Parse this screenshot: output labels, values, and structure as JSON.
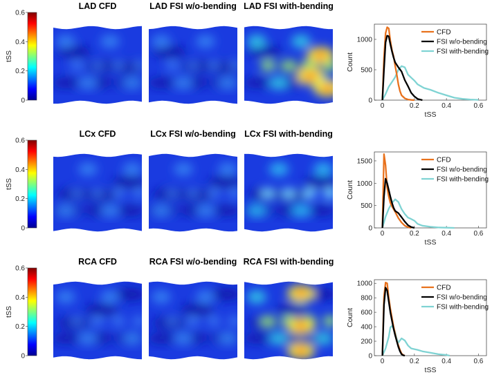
{
  "colorbar": {
    "label": "tSS",
    "ticks": [
      "0",
      "0.2",
      "0.4",
      "0.6"
    ],
    "colormap": "jet",
    "range": [
      0,
      0.6
    ]
  },
  "rows": [
    {
      "vessel": "LAD",
      "maps": [
        {
          "title": "LAD CFD",
          "level": "low"
        },
        {
          "title": "LAD FSI w/o-bending",
          "level": "low"
        },
        {
          "title": "LAD FSI with-bending",
          "level": "high"
        }
      ]
    },
    {
      "vessel": "LCx",
      "maps": [
        {
          "title": "LCx CFD",
          "level": "low"
        },
        {
          "title": "LCx FSI w/o-bending",
          "level": "low"
        },
        {
          "title": "LCx FSI with-bending",
          "level": "medium"
        }
      ]
    },
    {
      "vessel": "RCA",
      "maps": [
        {
          "title": "RCA CFD",
          "level": "low"
        },
        {
          "title": "RCA FSI w/o-bending",
          "level": "low"
        },
        {
          "title": "RCA FSI with-bending",
          "level": "high"
        }
      ]
    }
  ],
  "colors": {
    "CFD": "#e8711c",
    "FSI w/o-bending": "#000000",
    "FSI with-bending": "#7fd3d3"
  },
  "chart_data": [
    {
      "type": "line",
      "xlabel": "tSS",
      "ylabel": "Count",
      "xlim": [
        -0.05,
        0.65
      ],
      "ylim": [
        0,
        1250
      ],
      "xticks": [
        "0",
        "0.2",
        "0.4",
        "0.6"
      ],
      "yticks": [
        "0",
        "500",
        "1000"
      ],
      "legend": "top-right",
      "series": [
        {
          "name": "CFD",
          "x": [
            0,
            0.01,
            0.02,
            0.03,
            0.04,
            0.05,
            0.06,
            0.07,
            0.08,
            0.09,
            0.1,
            0.11,
            0.12,
            0.14,
            0.16,
            0.18,
            0.2
          ],
          "y": [
            0,
            700,
            1100,
            1200,
            1180,
            980,
            820,
            720,
            560,
            420,
            260,
            150,
            80,
            30,
            10,
            3,
            0
          ]
        },
        {
          "name": "FSI w/o-bending",
          "x": [
            0,
            0.01,
            0.02,
            0.03,
            0.04,
            0.05,
            0.06,
            0.07,
            0.08,
            0.1,
            0.12,
            0.14,
            0.16,
            0.18,
            0.2,
            0.22,
            0.25
          ],
          "y": [
            0,
            500,
            950,
            1060,
            1050,
            920,
            800,
            700,
            620,
            540,
            470,
            330,
            230,
            120,
            60,
            20,
            0
          ]
        },
        {
          "name": "FSI with-bending",
          "x": [
            0,
            0.02,
            0.04,
            0.06,
            0.08,
            0.1,
            0.12,
            0.14,
            0.16,
            0.18,
            0.2,
            0.22,
            0.26,
            0.3,
            0.35,
            0.4,
            0.45,
            0.5,
            0.55,
            0.6
          ],
          "y": [
            0,
            100,
            220,
            300,
            380,
            500,
            560,
            540,
            420,
            370,
            320,
            260,
            200,
            170,
            120,
            80,
            40,
            20,
            10,
            5
          ]
        }
      ]
    },
    {
      "type": "line",
      "xlabel": "tSS",
      "ylabel": "Count",
      "xlim": [
        -0.05,
        0.65
      ],
      "ylim": [
        0,
        1700
      ],
      "xticks": [
        "0",
        "0.2",
        "0.4",
        "0.6"
      ],
      "yticks": [
        "0",
        "500",
        "1000",
        "1500"
      ],
      "legend": "top-right",
      "series": [
        {
          "name": "CFD",
          "x": [
            0,
            0.005,
            0.01,
            0.02,
            0.03,
            0.04,
            0.05,
            0.06,
            0.07,
            0.08,
            0.1,
            0.12,
            0.14,
            0.16,
            0.18
          ],
          "y": [
            0,
            800,
            1650,
            1400,
            900,
            700,
            560,
            480,
            420,
            360,
            220,
            120,
            50,
            15,
            0
          ]
        },
        {
          "name": "FSI w/o-bending",
          "x": [
            0,
            0.01,
            0.02,
            0.03,
            0.04,
            0.05,
            0.06,
            0.07,
            0.08,
            0.1,
            0.12,
            0.14,
            0.16,
            0.18,
            0.2
          ],
          "y": [
            0,
            700,
            1100,
            1000,
            850,
            700,
            560,
            450,
            380,
            330,
            240,
            140,
            60,
            20,
            0
          ]
        },
        {
          "name": "FSI with-bending",
          "x": [
            0,
            0.02,
            0.04,
            0.06,
            0.08,
            0.1,
            0.12,
            0.14,
            0.16,
            0.18,
            0.2,
            0.22,
            0.25,
            0.3,
            0.35,
            0.4,
            0.45
          ],
          "y": [
            0,
            250,
            430,
            560,
            640,
            580,
            420,
            310,
            230,
            200,
            160,
            90,
            50,
            25,
            10,
            5,
            0
          ]
        }
      ]
    },
    {
      "type": "line",
      "xlabel": "tSS",
      "ylabel": "Count",
      "xlim": [
        -0.05,
        0.65
      ],
      "ylim": [
        0,
        1050
      ],
      "xticks": [
        "0",
        "0.2",
        "0.4",
        "0.6"
      ],
      "yticks": [
        "0",
        "200",
        "400",
        "600",
        "800",
        "1000"
      ],
      "legend": "top-right",
      "series": [
        {
          "name": "CFD",
          "x": [
            0,
            0.01,
            0.02,
            0.03,
            0.04,
            0.05,
            0.06,
            0.07,
            0.08,
            0.09,
            0.1,
            0.11,
            0.12,
            0.13,
            0.14
          ],
          "y": [
            0,
            820,
            1010,
            1000,
            800,
            650,
            520,
            400,
            300,
            200,
            140,
            80,
            30,
            10,
            0
          ]
        },
        {
          "name": "FSI w/o-bending",
          "x": [
            0,
            0.01,
            0.02,
            0.03,
            0.04,
            0.05,
            0.06,
            0.07,
            0.08,
            0.09,
            0.1,
            0.11,
            0.12,
            0.13,
            0.14
          ],
          "y": [
            0,
            700,
            940,
            900,
            750,
            600,
            480,
            370,
            280,
            200,
            120,
            60,
            20,
            5,
            0
          ]
        },
        {
          "name": "FSI with-bending",
          "x": [
            0,
            0.02,
            0.04,
            0.05,
            0.06,
            0.07,
            0.08,
            0.09,
            0.1,
            0.12,
            0.14,
            0.16,
            0.18,
            0.2,
            0.22,
            0.25,
            0.3,
            0.35,
            0.4,
            0.42
          ],
          "y": [
            0,
            100,
            260,
            390,
            410,
            380,
            320,
            230,
            180,
            240,
            210,
            140,
            100,
            90,
            80,
            60,
            40,
            20,
            10,
            0
          ]
        }
      ]
    }
  ]
}
